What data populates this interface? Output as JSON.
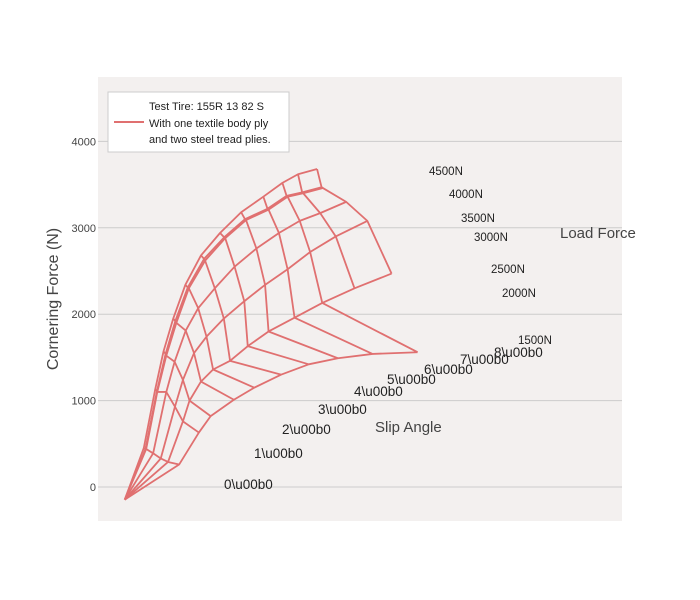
{
  "chart_data": {
    "type": "line",
    "title": "",
    "xlabel": "",
    "ylabel": "Cornering Force (N)",
    "ylim": [
      -400,
      4700
    ],
    "yticks": [
      0,
      1000,
      2000,
      3000,
      4000
    ],
    "grid": "horizontal",
    "colors": {
      "line": "#e07070",
      "plot_bg": "#f3f0ef",
      "grid": "#cccccc"
    },
    "legend": {
      "position": "top-left",
      "lines": [
        "Test Tire: 155R 13 82 S",
        "With one textile body ply",
        "and two steel tread plies."
      ]
    },
    "series": [
      {
        "name": "1500N",
        "x": [
          -0.6,
          0.97,
          1.54,
          1.88,
          2.55,
          3.14,
          3.91,
          4.71,
          5.55,
          6.55,
          7.85
        ],
        "y": [
          -147,
          260,
          630,
          820,
          1010,
          1150,
          1300,
          1420,
          1490,
          1540,
          1560
        ]
      },
      {
        "name": "2000N",
        "x": [
          -0.6,
          0.65,
          1.08,
          1.27,
          1.6,
          1.95,
          2.44,
          2.95,
          3.55,
          4.3,
          5.1,
          6.03,
          7.1
        ],
        "y": [
          -147,
          290,
          760,
          1000,
          1220,
          1360,
          1460,
          1630,
          1800,
          1960,
          2130,
          2300,
          2470
        ]
      },
      {
        "name": "2500N",
        "x": [
          -0.6,
          0.44,
          0.85,
          1.08,
          1.4,
          1.76,
          2.26,
          2.85,
          3.45,
          4.1,
          4.75,
          5.49,
          6.4
        ],
        "y": [
          -147,
          330,
          930,
          1240,
          1550,
          1740,
          1950,
          2150,
          2340,
          2520,
          2720,
          2900,
          3080
        ]
      },
      {
        "name": "3000N",
        "x": [
          -0.6,
          0.22,
          0.6,
          0.84,
          1.16,
          1.52,
          2.0,
          2.57,
          3.2,
          3.85,
          4.45,
          5.04,
          5.79
        ],
        "y": [
          -147,
          390,
          1100,
          1450,
          1810,
          2070,
          2300,
          2550,
          2760,
          2940,
          3080,
          3170,
          3300
        ]
      },
      {
        "name": "3500N",
        "x": [
          -0.6,
          0.02,
          0.34,
          0.6,
          0.89,
          1.25,
          1.72,
          2.3,
          2.9,
          3.55,
          4.1,
          4.55,
          5.12
        ],
        "y": [
          -147,
          440,
          1100,
          1520,
          1900,
          2300,
          2620,
          2880,
          3090,
          3210,
          3360,
          3400,
          3460
        ]
      },
      {
        "name": "4000N",
        "x": [
          -0.6,
          0.0,
          0.33,
          0.58,
          0.86,
          1.22,
          1.69,
          2.27,
          2.87,
          3.52,
          4.07,
          4.52,
          5.08
        ],
        "y": [
          -147,
          440,
          1110,
          1540,
          1920,
          2310,
          2640,
          2890,
          3100,
          3220,
          3370,
          3410,
          3470
        ]
      },
      {
        "name": "4500N",
        "x": [
          -0.6,
          -0.05,
          0.28,
          0.52,
          0.8,
          1.15,
          1.6,
          2.15,
          2.76,
          3.4,
          3.95,
          4.4,
          4.95
        ],
        "y": [
          -147,
          450,
          1130,
          1570,
          1950,
          2340,
          2680,
          2940,
          3180,
          3360,
          3520,
          3620,
          3680
        ]
      }
    ],
    "annotations": {
      "slip_angles": [
        "0\\u00b0",
        "1\\u00b0",
        "2\\u00b0",
        "3\\u00b0",
        "4\\u00b0",
        "5\\u00b0",
        "6\\u00b0",
        "7\\u00b0",
        "8\\u00b0"
      ],
      "loads": [
        "1500N",
        "2000N",
        "2500N",
        "3000N",
        "3500N",
        "4000N",
        "4500N"
      ],
      "slip_title": "Slip Angle",
      "load_title": "Load Force"
    }
  }
}
